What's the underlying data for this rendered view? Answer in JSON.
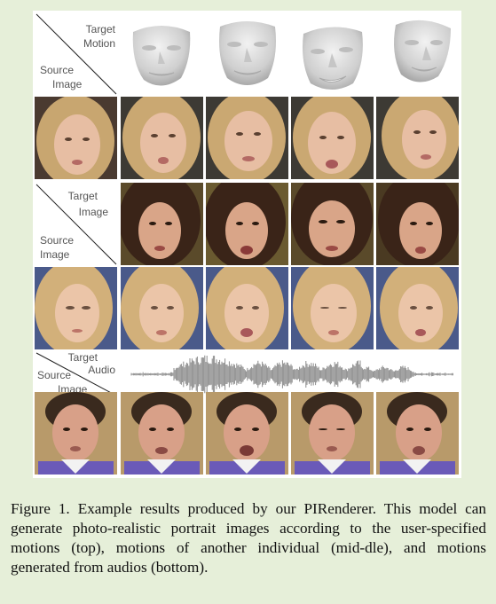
{
  "figure": {
    "rows": [
      {
        "header_top": [
          "Target",
          "Motion"
        ],
        "header_bottom": [
          "Source",
          "Image"
        ],
        "target_kind": "3D face meshes",
        "source_tone": "blonde"
      },
      {
        "header_top": [
          "Target",
          "Image"
        ],
        "header_bottom": [
          "Source",
          "Image"
        ],
        "target_kind": "portrait images",
        "source_tone": "blonde"
      },
      {
        "header_top": [
          "Target",
          "Audio"
        ],
        "header_bottom": [
          "Source",
          "Image"
        ],
        "target_kind": "audio waveform",
        "source_tone": "dark-haired man"
      }
    ],
    "colors": {
      "background": "#e6efd9",
      "label": "#555555",
      "waveform": "#8c8c8c",
      "mesh": "#d8d8d8"
    }
  },
  "caption": {
    "label": "Figure 1.",
    "text": "Example results produced by our PIRenderer.  This model can generate photo-realistic portrait images according to the user-specified motions (top), motions of another individual (mid-dle), and motions generated from audios (bottom)."
  }
}
